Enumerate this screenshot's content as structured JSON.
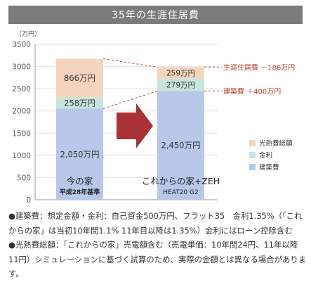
{
  "header": {
    "title": "35年の生涯住居費"
  },
  "chart_data": {
    "type": "bar",
    "stacked": true,
    "unit_label": "（万円）",
    "ylim": [
      0,
      3500
    ],
    "yticks": [
      0,
      500,
      1000,
      1500,
      2000,
      2500,
      3000,
      3500
    ],
    "grid": true,
    "categories": [
      {
        "name": "今の家",
        "sub": "平成28年基準"
      },
      {
        "name": "これからの家+ZEH",
        "sub": "HEAT20 G2"
      }
    ],
    "series": [
      {
        "name": "建築費",
        "color": "#b8c7ea",
        "values": [
          2050,
          2450
        ],
        "labels": [
          "2,050万円",
          "2,450万円"
        ]
      },
      {
        "name": "金利",
        "color": "#c6e6dd",
        "values": [
          258,
          279
        ],
        "labels": [
          "258万円",
          "279万円"
        ]
      },
      {
        "name": "光熱費総額",
        "color": "#f5d5bd",
        "values": [
          866,
          259
        ],
        "labels": [
          "866万円",
          "259万円"
        ]
      }
    ],
    "legend_position": "right",
    "annotations": [
      {
        "text": "生涯住居費 －186万円",
        "color": "#c0392b"
      },
      {
        "text": "建築費 ＋400万円",
        "color": "#c0392b"
      }
    ]
  },
  "notes": [
    "●建築費：想定金額・金利：自己資金500万円、フラット35　金利1.35%（「これからの家」は当初10年間1.1% 11年目以降は1.35%）金利にはローン控除含む　●光熱費総額：「これからの家」売電額含む（売電単価：10年間24円、11年以降11円）シミュレーションに基づく試算のため、実際の金額とは異なる場合があります。"
  ]
}
